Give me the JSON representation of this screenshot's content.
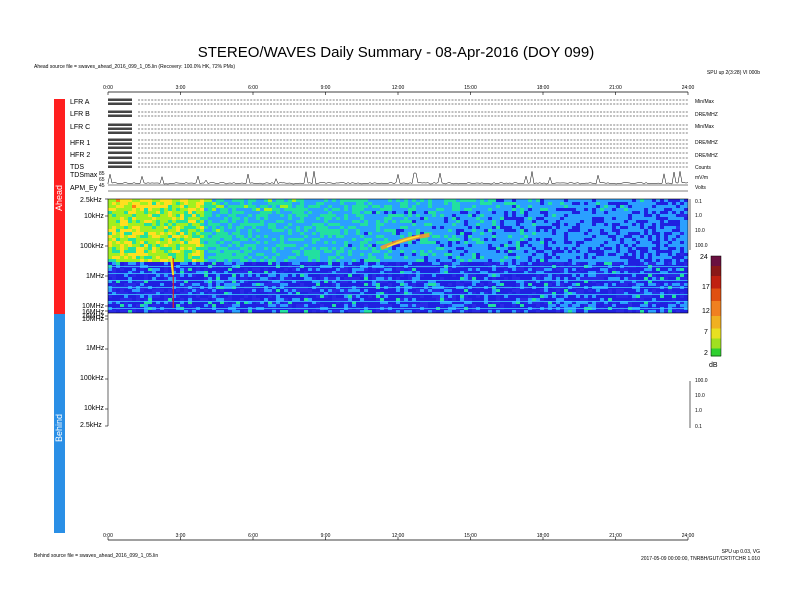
{
  "header": {
    "title": "STEREO/WAVES Daily Summary - 08-Apr-2016 (DOY 099)",
    "ahead_source": "Ahead source file = swaves_ahead_2016_099_1_05.lin (Recovery: 100.0% HK, 72% PMs)",
    "version_top": "SPU up 2(3:28) VI 000b"
  },
  "footer": {
    "behind_source": "Behind source file = swaves_ahead_2016_099_1_05.lin",
    "version_line1": "SPU up 0.03, VG",
    "version_line2": "2017-05-09 00:00:00, TNRBH/GUT/CRT/TCHR 1.010"
  },
  "spacecraft": {
    "ahead_label": "Ahead",
    "behind_label": "Behind",
    "ahead_color": "#ff1f1f",
    "behind_color": "#2a8fe6"
  },
  "hk_rows": [
    {
      "label": "LFR A",
      "right": "Min/Max"
    },
    {
      "label": "LFR B",
      "right": "DRE/MHZ"
    },
    {
      "label": "LFR C",
      "right": "Min/Max"
    },
    {
      "label": "HFR 1",
      "right": "DRE/MHZ"
    },
    {
      "label": "HFR 2",
      "right": "DRE/MHZ"
    },
    {
      "label": "TDS",
      "right": "Counts"
    },
    {
      "label": "TDSmax",
      "right": "mV/m"
    },
    {
      "label": "APM_Ey",
      "right": "Volts"
    }
  ],
  "tdsmax_ticks": [
    "85",
    "65",
    "45"
  ],
  "chart_data": {
    "type": "heatmap",
    "xlabel": "",
    "x_ticks": [
      "0:00",
      "3:00",
      "6:00",
      "9:00",
      "12:00",
      "15:00",
      "18:00",
      "21:00",
      "24:00"
    ],
    "xlim_hours": [
      0,
      24
    ],
    "ahead_freq_ticks": [
      "2.5kHz",
      "10kHz",
      "100kHz",
      "1MHz",
      "10MHz",
      "16MHz"
    ],
    "behind_freq_ticks": [
      "16MHz",
      "10MHz",
      "1MHz",
      "100kHz",
      "10kHz",
      "2.5kHz"
    ],
    "ahead_right_ticks": [
      "0.1",
      "1.0",
      "10.0",
      "100.0"
    ],
    "behind_right_ticks": [
      "100.0",
      "10.0",
      "1.0",
      "0.1"
    ],
    "colorbar": {
      "unit": "dB",
      "ticks": [
        "24",
        "17",
        "12",
        "7",
        "2"
      ],
      "range": [
        2,
        24
      ]
    },
    "features": [
      {
        "name": "type III burst",
        "hour": 2.7,
        "freq_range": [
          "16MHz",
          "100kHz"
        ]
      },
      {
        "name": "type II drift",
        "hour_start": 11.3,
        "hour_end": 13.3,
        "freq": "100kHz"
      }
    ],
    "behind_data": "no data"
  }
}
